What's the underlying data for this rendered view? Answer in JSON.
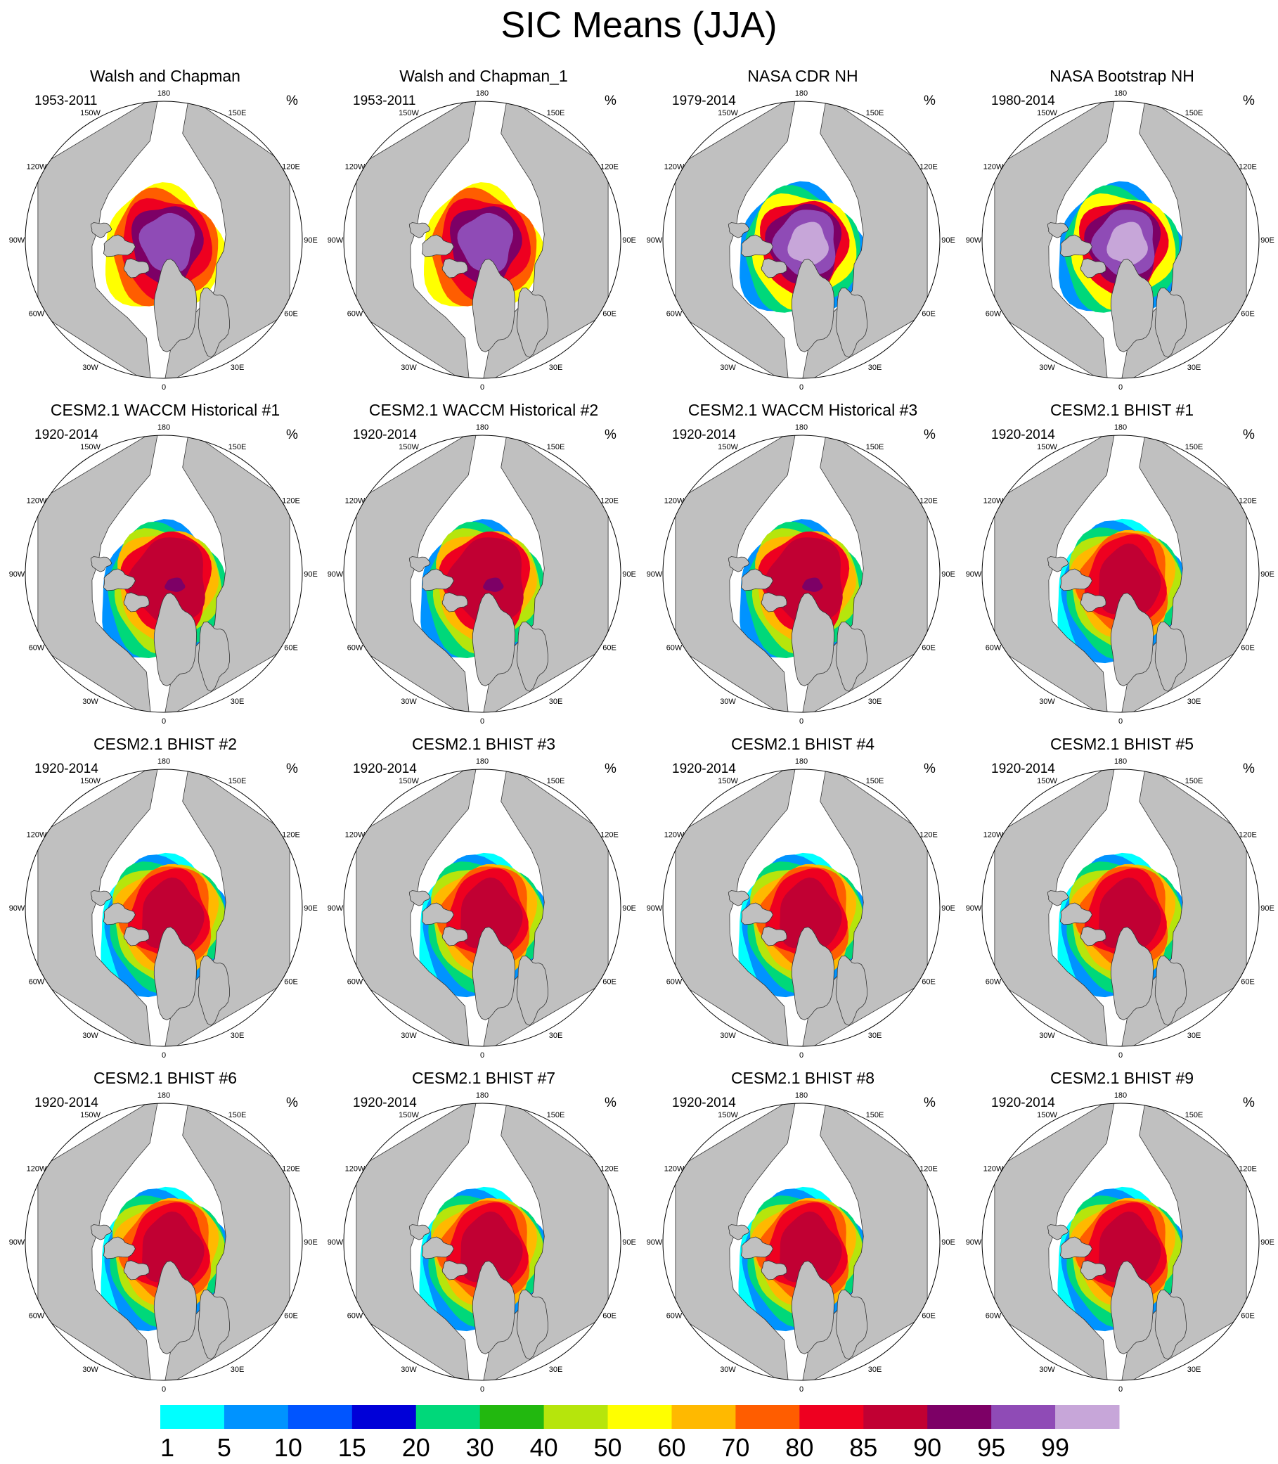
{
  "title": "SIC Means (JJA)",
  "units": "%",
  "colors": {
    "land": "#c0c0c0",
    "ocean": "#ffffff"
  },
  "longitude_labels": [
    "180",
    "150E",
    "120E",
    "90E",
    "60E",
    "30E",
    "0",
    "30W",
    "60W",
    "90W",
    "120W",
    "150W"
  ],
  "panels": [
    {
      "title": "Walsh and Chapman",
      "period": "1953-2011",
      "style": "obs_walsh"
    },
    {
      "title": "Walsh and Chapman_1",
      "period": "1953-2011",
      "style": "obs_walsh"
    },
    {
      "title": "NASA CDR NH",
      "period": "1979-2014",
      "style": "obs_nasa"
    },
    {
      "title": "NASA Bootstrap NH",
      "period": "1980-2014",
      "style": "obs_nasa"
    },
    {
      "title": "CESM2.1 WACCM Historical #1",
      "period": "1920-2014",
      "style": "waccm"
    },
    {
      "title": "CESM2.1 WACCM Historical #2",
      "period": "1920-2014",
      "style": "waccm"
    },
    {
      "title": "CESM2.1 WACCM Historical #3",
      "period": "1920-2014",
      "style": "waccm"
    },
    {
      "title": "CESM2.1 BHIST #1",
      "period": "1920-2014",
      "style": "bhist"
    },
    {
      "title": "CESM2.1 BHIST #2",
      "period": "1920-2014",
      "style": "bhist"
    },
    {
      "title": "CESM2.1 BHIST #3",
      "period": "1920-2014",
      "style": "bhist"
    },
    {
      "title": "CESM2.1 BHIST #4",
      "period": "1920-2014",
      "style": "bhist"
    },
    {
      "title": "CESM2.1 BHIST #5",
      "period": "1920-2014",
      "style": "bhist"
    },
    {
      "title": "CESM2.1 BHIST #6",
      "period": "1920-2014",
      "style": "bhist"
    },
    {
      "title": "CESM2.1 BHIST #7",
      "period": "1920-2014",
      "style": "bhist"
    },
    {
      "title": "CESM2.1 BHIST #8",
      "period": "1920-2014",
      "style": "bhist"
    },
    {
      "title": "CESM2.1 BHIST #9",
      "period": "1920-2014",
      "style": "bhist"
    }
  ],
  "colorbar": {
    "labels": [
      "1",
      "5",
      "10",
      "15",
      "20",
      "30",
      "40",
      "50",
      "60",
      "70",
      "80",
      "85",
      "90",
      "95",
      "99"
    ],
    "colors": [
      "#00ffff",
      "#0093ff",
      "#0055ff",
      "#0000d8",
      "#00d87a",
      "#22b80f",
      "#b6e50c",
      "#ffff00",
      "#ffb900",
      "#ff5d00",
      "#ee0020",
      "#c10033",
      "#7d0066",
      "#8f4bb6",
      "#c7a6d9"
    ]
  }
}
